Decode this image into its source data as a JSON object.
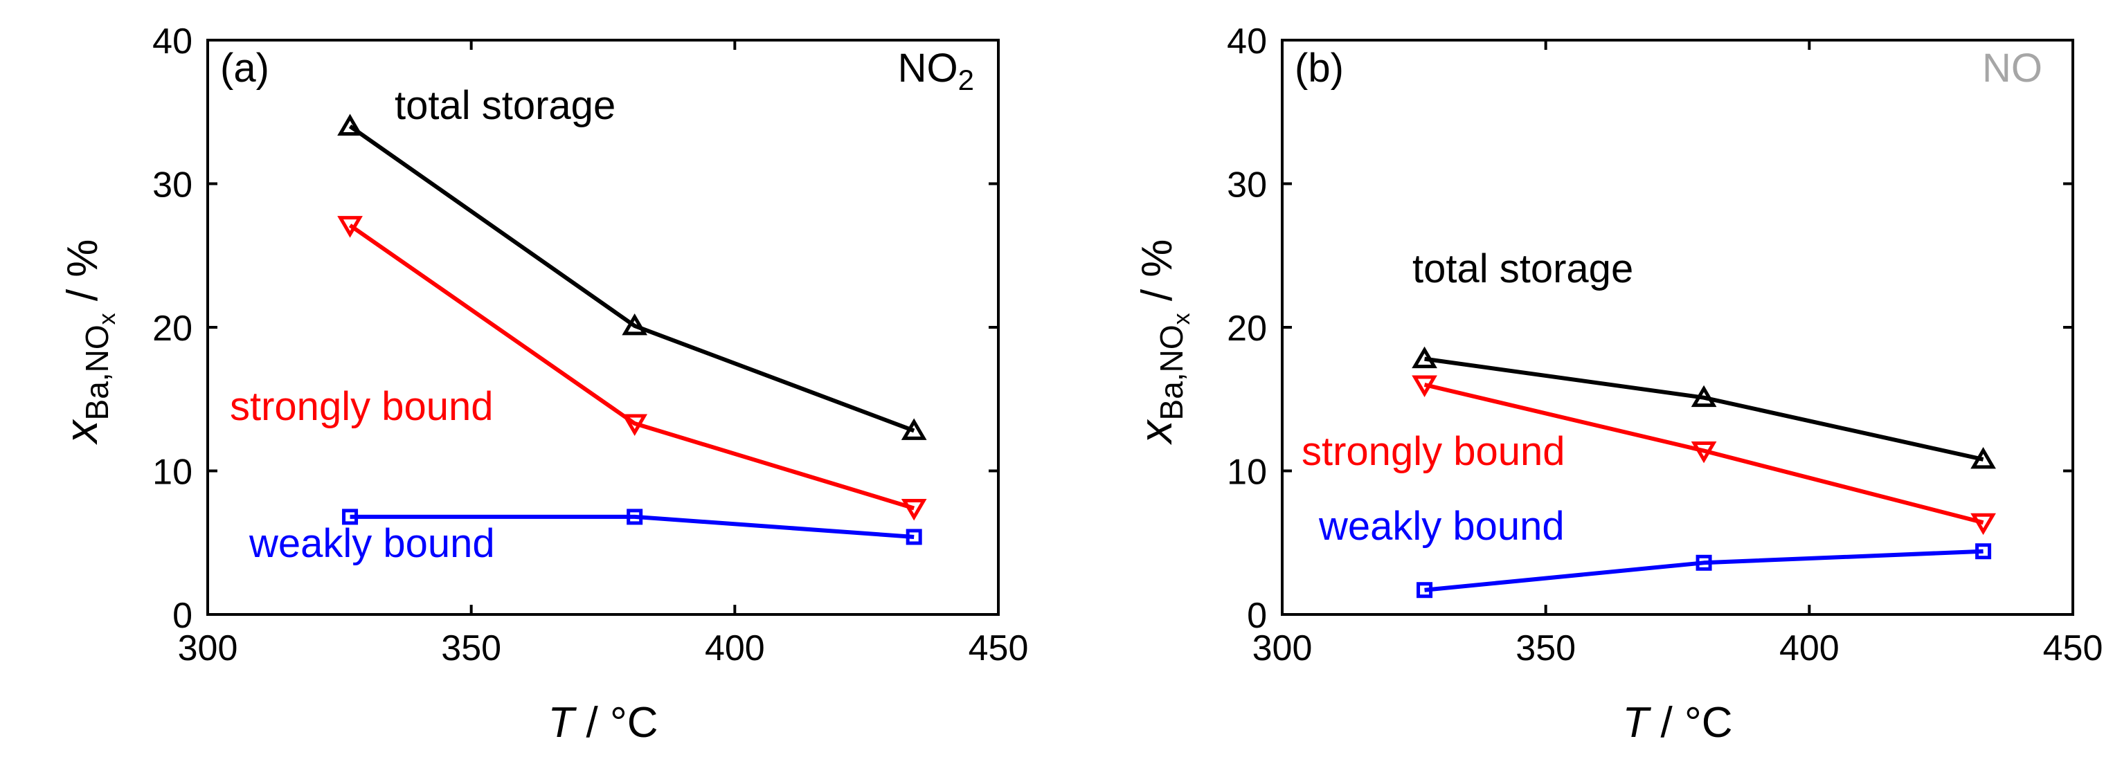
{
  "chart_data": [
    {
      "type": "line",
      "panel_label": "(a)",
      "gas_label": {
        "main": "NO",
        "sub": "2"
      },
      "gas_color": "#000000",
      "xlabel": {
        "italic": "T",
        "rest": " / °C"
      },
      "ylabel": {
        "symbol": "x",
        "sub_main": "Ba,NO",
        "sub_sub": "x",
        "unit": " / %"
      },
      "xlim": [
        300,
        450
      ],
      "ylim": [
        0,
        40
      ],
      "xticks": [
        300,
        350,
        400,
        450
      ],
      "yticks": [
        0,
        10,
        20,
        30,
        40
      ],
      "series": [
        {
          "name": "total storage",
          "color": "#000000",
          "marker": "triangle-up-open",
          "x": [
            327,
            381,
            434
          ],
          "y": [
            34.0,
            20.1,
            12.8
          ]
        },
        {
          "name": "strongly bound",
          "color": "#ff0000",
          "marker": "triangle-down-open",
          "x": [
            327,
            381,
            434
          ],
          "y": [
            27.1,
            13.3,
            7.4
          ]
        },
        {
          "name": "weakly bound",
          "color": "#0000ff",
          "marker": "square-open",
          "x": [
            327,
            381,
            434
          ],
          "y": [
            6.8,
            6.8,
            5.4
          ]
        }
      ],
      "annotations": [
        {
          "text": "total storage",
          "color": "#000000"
        },
        {
          "text": "strongly bound",
          "color": "#ff0000"
        },
        {
          "text": "weakly bound",
          "color": "#0000ff"
        }
      ]
    },
    {
      "type": "line",
      "panel_label": "(b)",
      "gas_label": {
        "main": "NO",
        "sub": ""
      },
      "gas_color": "#a6a6a6",
      "xlabel": {
        "italic": "T",
        "rest": " / °C"
      },
      "ylabel": {
        "symbol": "x",
        "sub_main": "Ba,NO",
        "sub_sub": "x",
        "unit": " / %"
      },
      "xlim": [
        300,
        450
      ],
      "ylim": [
        0,
        40
      ],
      "xticks": [
        300,
        350,
        400,
        450
      ],
      "yticks": [
        0,
        10,
        20,
        30,
        40
      ],
      "series": [
        {
          "name": "total storage",
          "color": "#000000",
          "marker": "triangle-up-open",
          "x": [
            327,
            380,
            433
          ],
          "y": [
            17.8,
            15.1,
            10.8
          ]
        },
        {
          "name": "strongly bound",
          "color": "#ff0000",
          "marker": "triangle-down-open",
          "x": [
            327,
            380,
            433
          ],
          "y": [
            16.0,
            11.4,
            6.4
          ]
        },
        {
          "name": "weakly bound",
          "color": "#0000ff",
          "marker": "square-open",
          "x": [
            327,
            380,
            433
          ],
          "y": [
            1.7,
            3.6,
            4.4
          ]
        }
      ],
      "annotations": [
        {
          "text": "total storage",
          "color": "#000000"
        },
        {
          "text": "strongly bound",
          "color": "#ff0000"
        },
        {
          "text": "weakly bound",
          "color": "#0000ff"
        }
      ]
    }
  ]
}
